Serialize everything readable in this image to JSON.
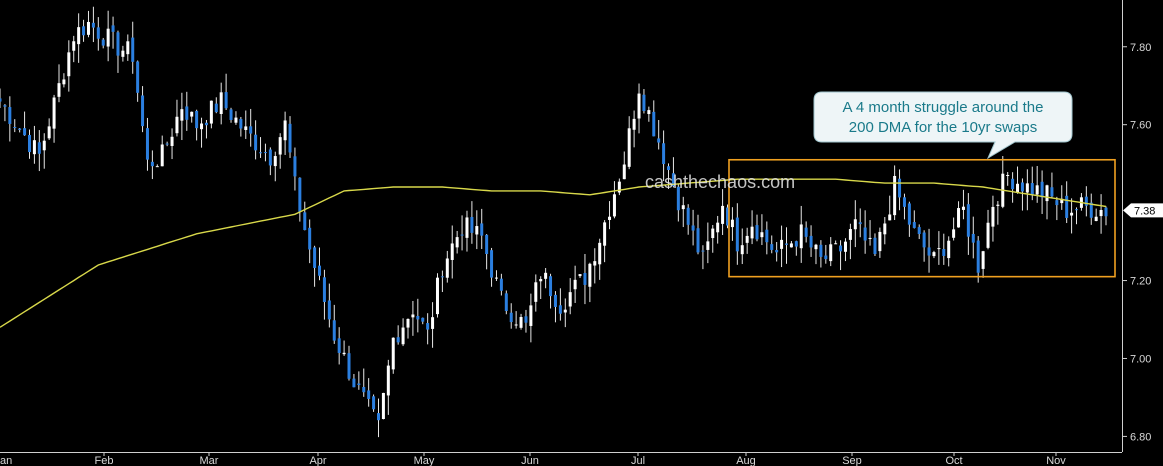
{
  "chart_data": {
    "type": "candlestick",
    "title": "",
    "xlabel": "",
    "ylabel": "",
    "ylim": [
      6.76,
      7.92
    ],
    "y_ticks": [
      "7.80",
      "7.60",
      "7.20",
      "7.00",
      "6.80"
    ],
    "y_tick_values": [
      7.8,
      7.6,
      7.2,
      7.0,
      6.8
    ],
    "x_month_labels": [
      "Jan",
      "Feb",
      "Mar",
      "Apr",
      "May",
      "Jun",
      "Jul",
      "Aug",
      "Sep",
      "Oct",
      "Nov"
    ],
    "x_month_labels_shown": [
      "an",
      "Feb",
      "Mar",
      "Apr",
      "May",
      "Jun",
      "Jul",
      "Aug",
      "Sep",
      "Oct",
      "Nov"
    ],
    "last_value": "7.38",
    "annotation": "A 4 month struggle around the 200 DMA for the 10yr swaps",
    "annotation_lines": [
      "A 4 month struggle around the",
      "200 DMA for the 10yr swaps"
    ],
    "watermark": "cashthechaos.com",
    "highlight_range": {
      "from": "Aug",
      "to": "Nov",
      "ymin": 7.21,
      "ymax": 7.51
    },
    "colors": {
      "background": "#000000",
      "up_candle": "#ffffff",
      "down_candle": "#2b7fe0",
      "ma_line": "#d8d84a",
      "highlight_box": "#f0a020",
      "callout_bg": "#eef5f7",
      "callout_text": "#1a7a8a",
      "axis_text": "#d8d8d8"
    },
    "series": [
      {
        "name": "10yr swaps",
        "kind": "ohlc_closes",
        "anchors_pos": [
          0,
          8,
          15,
          18,
          22,
          24,
          27,
          30,
          33,
          37,
          40,
          45,
          50,
          55,
          58,
          60,
          63,
          68,
          72,
          77,
          80,
          84,
          87,
          90,
          94,
          98,
          102,
          107,
          110,
          114,
          119,
          122,
          127,
          130,
          134,
          138,
          143,
          147,
          150,
          153,
          158,
          163,
          167,
          171,
          174,
          178,
          182,
          186,
          190,
          193,
          196,
          199,
          202,
          205,
          209,
          213,
          217,
          220,
          225
        ],
        "anchors_close": [
          7.66,
          7.52,
          7.83,
          7.86,
          7.82,
          7.8,
          7.78,
          7.5,
          7.52,
          7.65,
          7.6,
          7.66,
          7.58,
          7.52,
          7.6,
          7.44,
          7.28,
          7.06,
          6.94,
          6.82,
          7.05,
          7.13,
          7.06,
          7.24,
          7.34,
          7.31,
          7.15,
          7.08,
          7.22,
          7.14,
          7.21,
          7.31,
          7.51,
          7.7,
          7.56,
          7.41,
          7.25,
          7.4,
          7.3,
          7.35,
          7.27,
          7.32,
          7.25,
          7.28,
          7.34,
          7.26,
          7.44,
          7.32,
          7.25,
          7.31,
          7.38,
          7.24,
          7.4,
          7.47,
          7.44,
          7.42,
          7.38,
          7.39,
          7.38
        ]
      },
      {
        "name": "200 DMA",
        "kind": "moving_average",
        "anchors_pos": [
          0,
          20,
          40,
          60,
          70,
          80,
          90,
          100,
          110,
          120,
          130,
          140,
          150,
          160,
          170,
          180,
          190,
          200,
          210,
          220,
          225
        ],
        "anchors_value": [
          7.08,
          7.24,
          7.32,
          7.37,
          7.43,
          7.44,
          7.44,
          7.43,
          7.43,
          7.42,
          7.44,
          7.45,
          7.46,
          7.46,
          7.46,
          7.45,
          7.45,
          7.44,
          7.42,
          7.4,
          7.39
        ]
      }
    ]
  }
}
